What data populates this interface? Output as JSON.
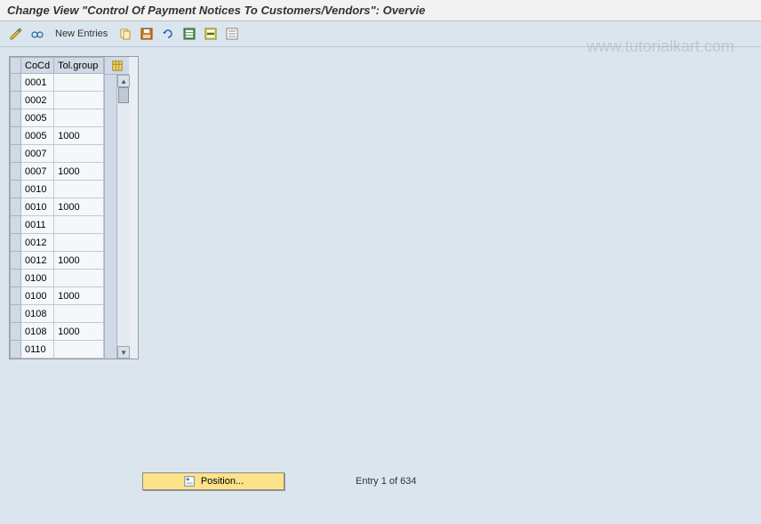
{
  "title": "Change View \"Control Of Payment Notices To Customers/Vendors\": Overvie",
  "watermark": "www.tutorialkart.com",
  "toolbar": {
    "new_entries_label": "New Entries",
    "icons": {
      "display_change": "display-change-icon",
      "other_view": "other-view-icon",
      "copy": "copy-icon",
      "save": "save-icon",
      "undo": "undo-icon",
      "select_all": "select-all-icon",
      "select_block": "select-block-icon",
      "deselect_all": "deselect-all-icon"
    }
  },
  "table": {
    "columns": {
      "selector": "",
      "cocd": "CoCd",
      "tolgroup": "Tol.group"
    },
    "config_icon": "table-config-icon",
    "rows": [
      {
        "cocd": "0001",
        "tolgroup": ""
      },
      {
        "cocd": "0002",
        "tolgroup": ""
      },
      {
        "cocd": "0005",
        "tolgroup": ""
      },
      {
        "cocd": "0005",
        "tolgroup": "1000"
      },
      {
        "cocd": "0007",
        "tolgroup": ""
      },
      {
        "cocd": "0007",
        "tolgroup": "1000"
      },
      {
        "cocd": "0010",
        "tolgroup": ""
      },
      {
        "cocd": "0010",
        "tolgroup": "1000"
      },
      {
        "cocd": "0011",
        "tolgroup": ""
      },
      {
        "cocd": "0012",
        "tolgroup": ""
      },
      {
        "cocd": "0012",
        "tolgroup": "1000"
      },
      {
        "cocd": "0100",
        "tolgroup": ""
      },
      {
        "cocd": "0100",
        "tolgroup": "1000"
      },
      {
        "cocd": "0108",
        "tolgroup": ""
      },
      {
        "cocd": "0108",
        "tolgroup": "1000"
      },
      {
        "cocd": "0110",
        "tolgroup": ""
      }
    ]
  },
  "footer": {
    "position_label": "Position...",
    "entry_text": "Entry 1 of 634"
  },
  "colors": {
    "bg": "#dbe5ee",
    "title_bg": "#f2f2f2",
    "table_header_bg": "#d0d9e5",
    "cell_bg": "#f5f8fa",
    "position_btn_bg": "#fce38a"
  }
}
